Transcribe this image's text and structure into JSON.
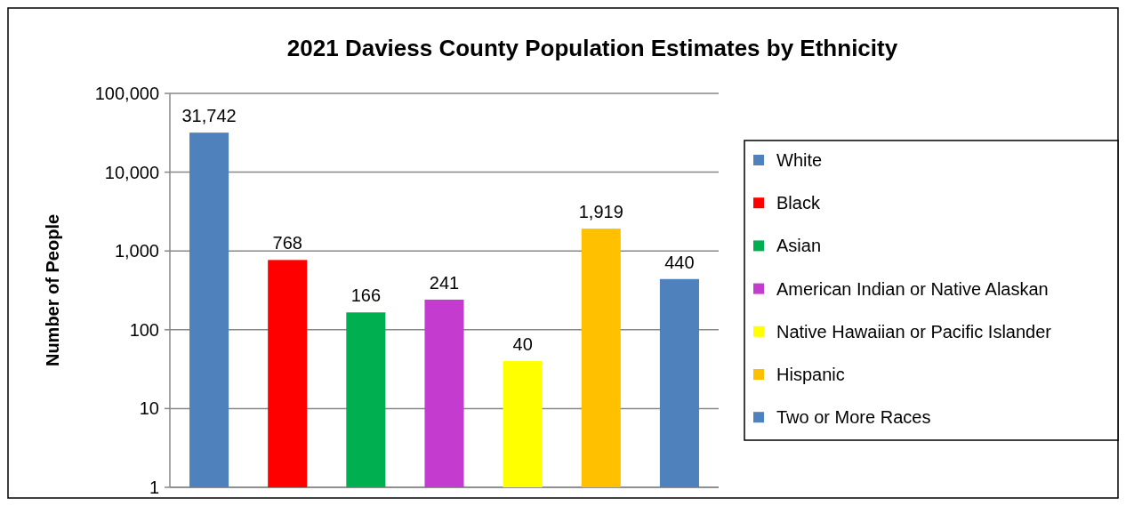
{
  "chart_data": {
    "type": "bar",
    "title": "2021 Daviess County Population Estimates by Ethnicity",
    "ylabel": "Number of People",
    "categories": [
      null,
      null,
      null,
      null,
      null,
      null,
      null
    ],
    "log": "y",
    "ylim": [
      1,
      100000
    ],
    "yticks": [
      1,
      10,
      100,
      {
        "value": 1000,
        "label": "1,000"
      },
      {
        "value": 10000,
        "label": "10,000"
      },
      {
        "value": 100000,
        "label": "100,000"
      }
    ],
    "grid": "y",
    "legend": "right",
    "series": [
      {
        "name": "White",
        "color": "#4f81bd",
        "values": [
          31742,
          null,
          null,
          null,
          null,
          null,
          null
        ],
        "value_labels": [
          "31,742",
          null,
          null,
          null,
          null,
          null,
          null
        ]
      },
      {
        "name": "Black",
        "color": "#ff0000",
        "values": [
          null,
          768,
          null,
          null,
          null,
          null,
          null
        ],
        "value_labels": [
          null,
          "768",
          null,
          null,
          null,
          null,
          null
        ]
      },
      {
        "name": "Asian",
        "color": "#00b050",
        "values": [
          null,
          null,
          166,
          null,
          null,
          null,
          null
        ],
        "value_labels": [
          null,
          null,
          "166",
          null,
          null,
          null,
          null
        ]
      },
      {
        "name": "American Indian or Native Alaskan",
        "color": "#c43bcf",
        "values": [
          null,
          null,
          null,
          241,
          null,
          null,
          null
        ],
        "value_labels": [
          null,
          null,
          null,
          "241",
          null,
          null,
          null
        ]
      },
      {
        "name": "Native Hawaiian or Pacific Islander",
        "color": "#ffff00",
        "values": [
          null,
          null,
          null,
          null,
          40,
          null,
          null
        ],
        "value_labels": [
          null,
          null,
          null,
          null,
          "40",
          null,
          null
        ]
      },
      {
        "name": "Hispanic",
        "color": "#ffc000",
        "values": [
          null,
          null,
          null,
          null,
          null,
          1919,
          null
        ],
        "value_labels": [
          null,
          null,
          null,
          null,
          null,
          "1,919",
          null
        ]
      },
      {
        "name": "Two or More Races",
        "color": "#4f81bd",
        "values": [
          null,
          null,
          null,
          null,
          null,
          null,
          440
        ],
        "value_labels": [
          null,
          null,
          null,
          null,
          null,
          null,
          "440"
        ]
      }
    ]
  }
}
